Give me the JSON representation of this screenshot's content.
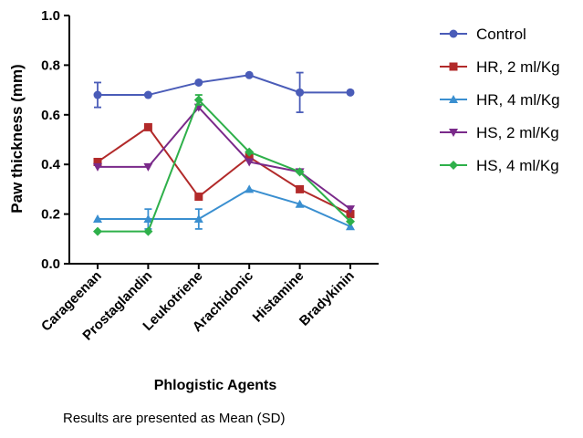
{
  "chart_data": {
    "type": "line",
    "categories": [
      "Carageenan",
      "Prostaglandin",
      "Leukotriene",
      "Arachidonic",
      "Histamine",
      "Bradykinin"
    ],
    "xlabel": "Phlogistic Agents",
    "ylabel": "Paw thickness (mm)",
    "ylim": [
      0,
      1.0
    ],
    "yticks": [
      "0.0",
      "0.2",
      "0.4",
      "0.6",
      "0.8",
      "1.0"
    ],
    "note": "Results are presented as Mean (SD)",
    "legend_position": "right",
    "series": [
      {
        "name": "Control",
        "color": "#4a5cb8",
        "marker": "circle",
        "values": [
          0.68,
          0.68,
          0.73,
          0.76,
          0.69,
          0.69
        ],
        "errors": [
          0.05,
          0.0,
          0.0,
          0.0,
          0.08,
          0.0
        ]
      },
      {
        "name": "HR, 2 ml/Kg",
        "color": "#b22a2a",
        "marker": "square",
        "values": [
          0.41,
          0.55,
          0.27,
          0.43,
          0.3,
          0.2
        ],
        "errors": [
          0,
          0,
          0,
          0,
          0,
          0
        ]
      },
      {
        "name": "HR, 4 ml/Kg",
        "color": "#3a8fd0",
        "marker": "triangle-up",
        "values": [
          0.18,
          0.18,
          0.18,
          0.3,
          0.24,
          0.15
        ],
        "errors": [
          0.0,
          0.04,
          0.04,
          0.0,
          0.0,
          0.0
        ]
      },
      {
        "name": "HS, 2 ml/Kg",
        "color": "#7a2a8a",
        "marker": "triangle-down",
        "values": [
          0.39,
          0.39,
          0.63,
          0.41,
          0.37,
          0.22
        ],
        "errors": [
          0,
          0,
          0,
          0,
          0,
          0
        ]
      },
      {
        "name": "HS, 4 ml/Kg",
        "color": "#2eb04a",
        "marker": "diamond",
        "values": [
          0.13,
          0.13,
          0.66,
          0.45,
          0.37,
          0.17
        ],
        "errors": [
          0.0,
          0.0,
          0.02,
          0.0,
          0.0,
          0.0
        ]
      }
    ]
  }
}
